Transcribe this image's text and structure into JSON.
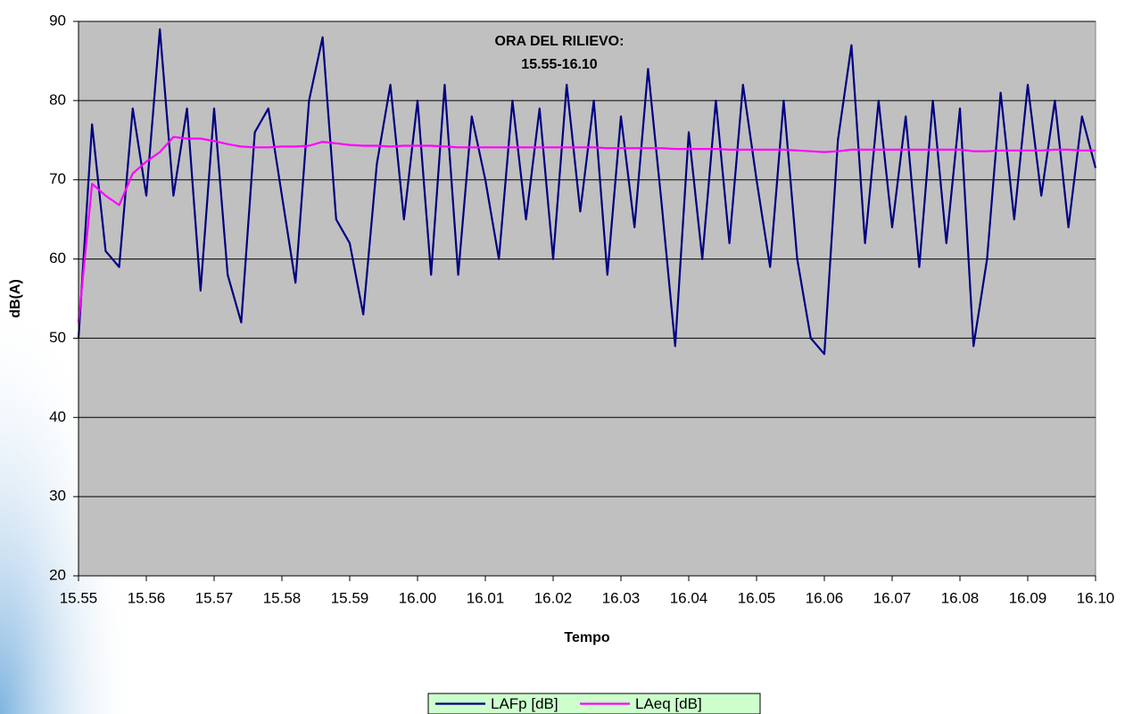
{
  "chart_data": {
    "type": "line",
    "annotation": [
      "ORA DEL RILIEVO:",
      "15.55-16.10"
    ],
    "x_label": "Tempo",
    "y_label": "dB(A)",
    "xlim": [
      0,
      15
    ],
    "xticks": [
      {
        "value": 0,
        "label": "15.55"
      },
      {
        "value": 1,
        "label": "15.56"
      },
      {
        "value": 2,
        "label": "15.57"
      },
      {
        "value": 3,
        "label": "15.58"
      },
      {
        "value": 4,
        "label": "15.59"
      },
      {
        "value": 5,
        "label": "16.00"
      },
      {
        "value": 6,
        "label": "16.01"
      },
      {
        "value": 7,
        "label": "16.02"
      },
      {
        "value": 8,
        "label": "16.03"
      },
      {
        "value": 9,
        "label": "16.04"
      },
      {
        "value": 10,
        "label": "16.05"
      },
      {
        "value": 11,
        "label": "16.06"
      },
      {
        "value": 12,
        "label": "16.07"
      },
      {
        "value": 13,
        "label": "16.08"
      },
      {
        "value": 14,
        "label": "16.09"
      },
      {
        "value": 15,
        "label": "16.10"
      }
    ],
    "ylim": [
      20,
      90
    ],
    "yticks": [
      20,
      30,
      40,
      50,
      60,
      70,
      80,
      90
    ],
    "grid": true,
    "legend": "bottom",
    "x": [
      0,
      0.2,
      0.4,
      0.6,
      0.8,
      1,
      1.2,
      1.4,
      1.6,
      1.8,
      2,
      2.2,
      2.4,
      2.6,
      2.8,
      3,
      3.2,
      3.4,
      3.6,
      3.8,
      4,
      4.2,
      4.4,
      4.6,
      4.8,
      5,
      5.2,
      5.4,
      5.6,
      5.8,
      6,
      6.2,
      6.4,
      6.6,
      6.8,
      7,
      7.2,
      7.4,
      7.6,
      7.8,
      8,
      8.2,
      8.4,
      8.6,
      8.8,
      9,
      9.2,
      9.4,
      9.6,
      9.8,
      10,
      10.2,
      10.4,
      10.6,
      10.8,
      11,
      11.2,
      11.4,
      11.6,
      11.8,
      12,
      12.2,
      12.4,
      12.6,
      12.8,
      13,
      13.2,
      13.4,
      13.6,
      13.8,
      14,
      14.2,
      14.4,
      14.6,
      14.8,
      15
    ],
    "series": [
      {
        "name": "LAFp [dB]",
        "color": "#000080",
        "values": [
          50,
          77,
          61,
          59,
          79,
          68,
          89,
          68,
          79,
          56,
          79,
          58,
          52,
          76,
          79,
          68,
          57,
          80,
          88,
          65,
          62,
          53,
          72,
          82,
          65,
          80,
          58,
          82,
          58,
          78,
          70,
          60,
          80,
          65,
          79,
          60,
          82,
          66,
          80,
          58,
          78,
          64,
          84,
          67,
          49,
          76,
          60,
          80,
          62,
          82,
          70,
          59,
          80,
          60,
          50,
          48,
          75,
          87,
          62,
          80,
          64,
          78,
          59,
          80,
          62,
          79,
          49,
          60,
          81,
          65,
          82,
          68,
          80,
          64,
          78,
          71.5
        ]
      },
      {
        "name": "LAeq [dB]",
        "color": "#ff00ff",
        "values": [
          52,
          69.5,
          68,
          66.8,
          70.8,
          72.3,
          73.5,
          75.4,
          75.2,
          75.2,
          74.9,
          74.5,
          74.2,
          74.1,
          74.1,
          74.2,
          74.2,
          74.3,
          74.8,
          74.6,
          74.4,
          74.3,
          74.3,
          74.2,
          74.3,
          74.3,
          74.3,
          74.2,
          74.1,
          74.1,
          74.1,
          74.1,
          74.1,
          74.1,
          74.1,
          74.1,
          74.1,
          74.1,
          74.1,
          74,
          74,
          74,
          74,
          74,
          73.9,
          73.9,
          73.9,
          73.9,
          73.8,
          73.8,
          73.8,
          73.8,
          73.8,
          73.7,
          73.6,
          73.5,
          73.6,
          73.8,
          73.8,
          73.8,
          73.8,
          73.8,
          73.8,
          73.8,
          73.8,
          73.8,
          73.6,
          73.6,
          73.7,
          73.7,
          73.7,
          73.7,
          73.8,
          73.8,
          73.7,
          73.7
        ]
      }
    ]
  }
}
